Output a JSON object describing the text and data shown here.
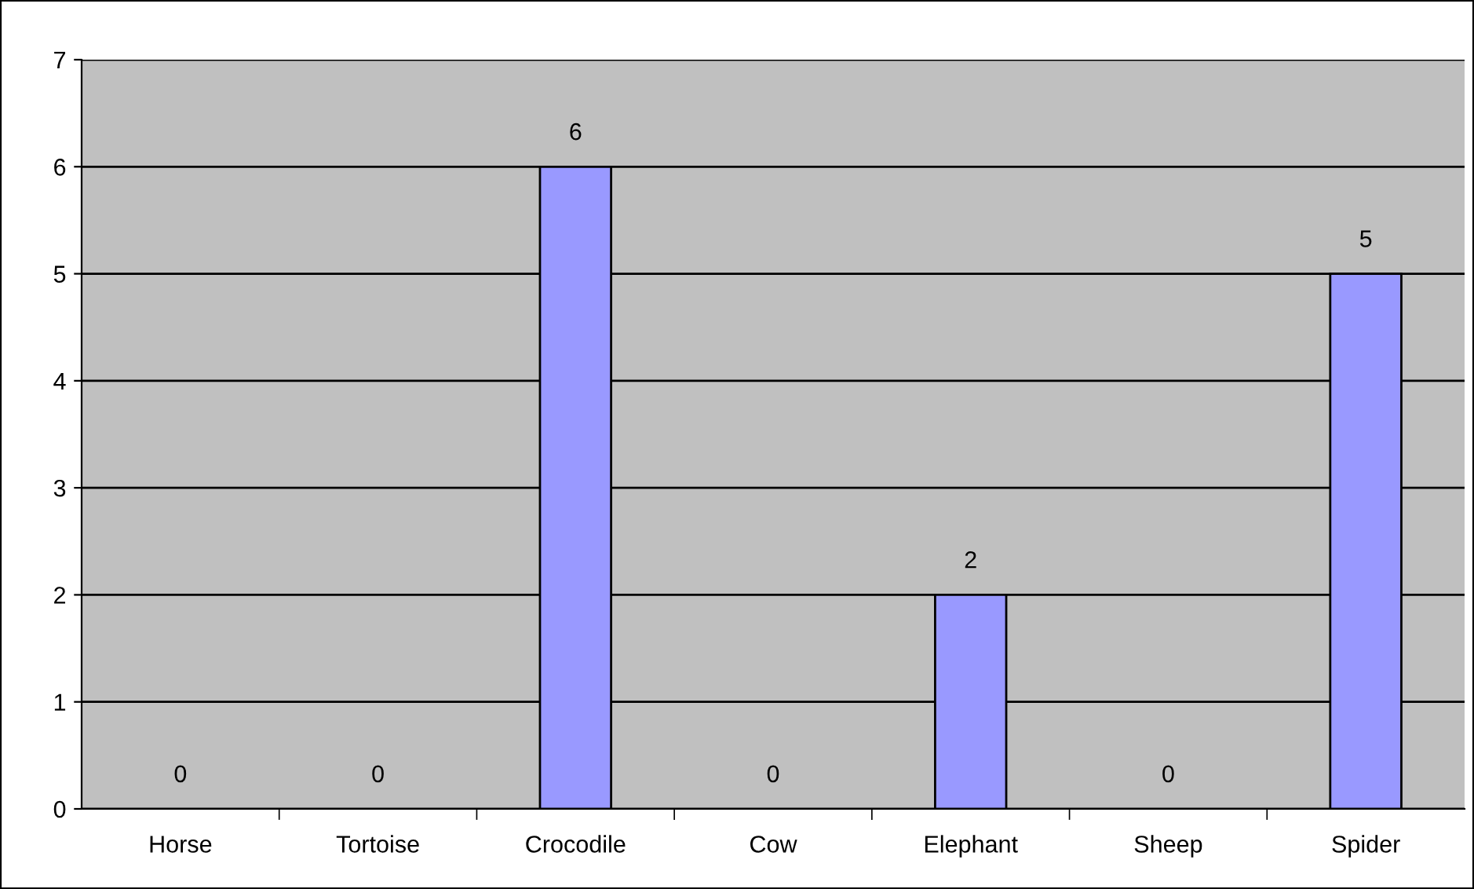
{
  "chart_data": {
    "type": "bar",
    "categories": [
      "Horse",
      "Tortoise",
      "Crocodile",
      "Cow",
      "Elephant",
      "Sheep",
      "Spider"
    ],
    "values": [
      0,
      0,
      6,
      0,
      2,
      0,
      5
    ],
    "color": "#9999ff",
    "ylim": [
      0,
      7
    ],
    "yticks": [
      0,
      1,
      2,
      3,
      4,
      5,
      6,
      7
    ],
    "grid": "y",
    "data_labels": true,
    "legend": false
  }
}
